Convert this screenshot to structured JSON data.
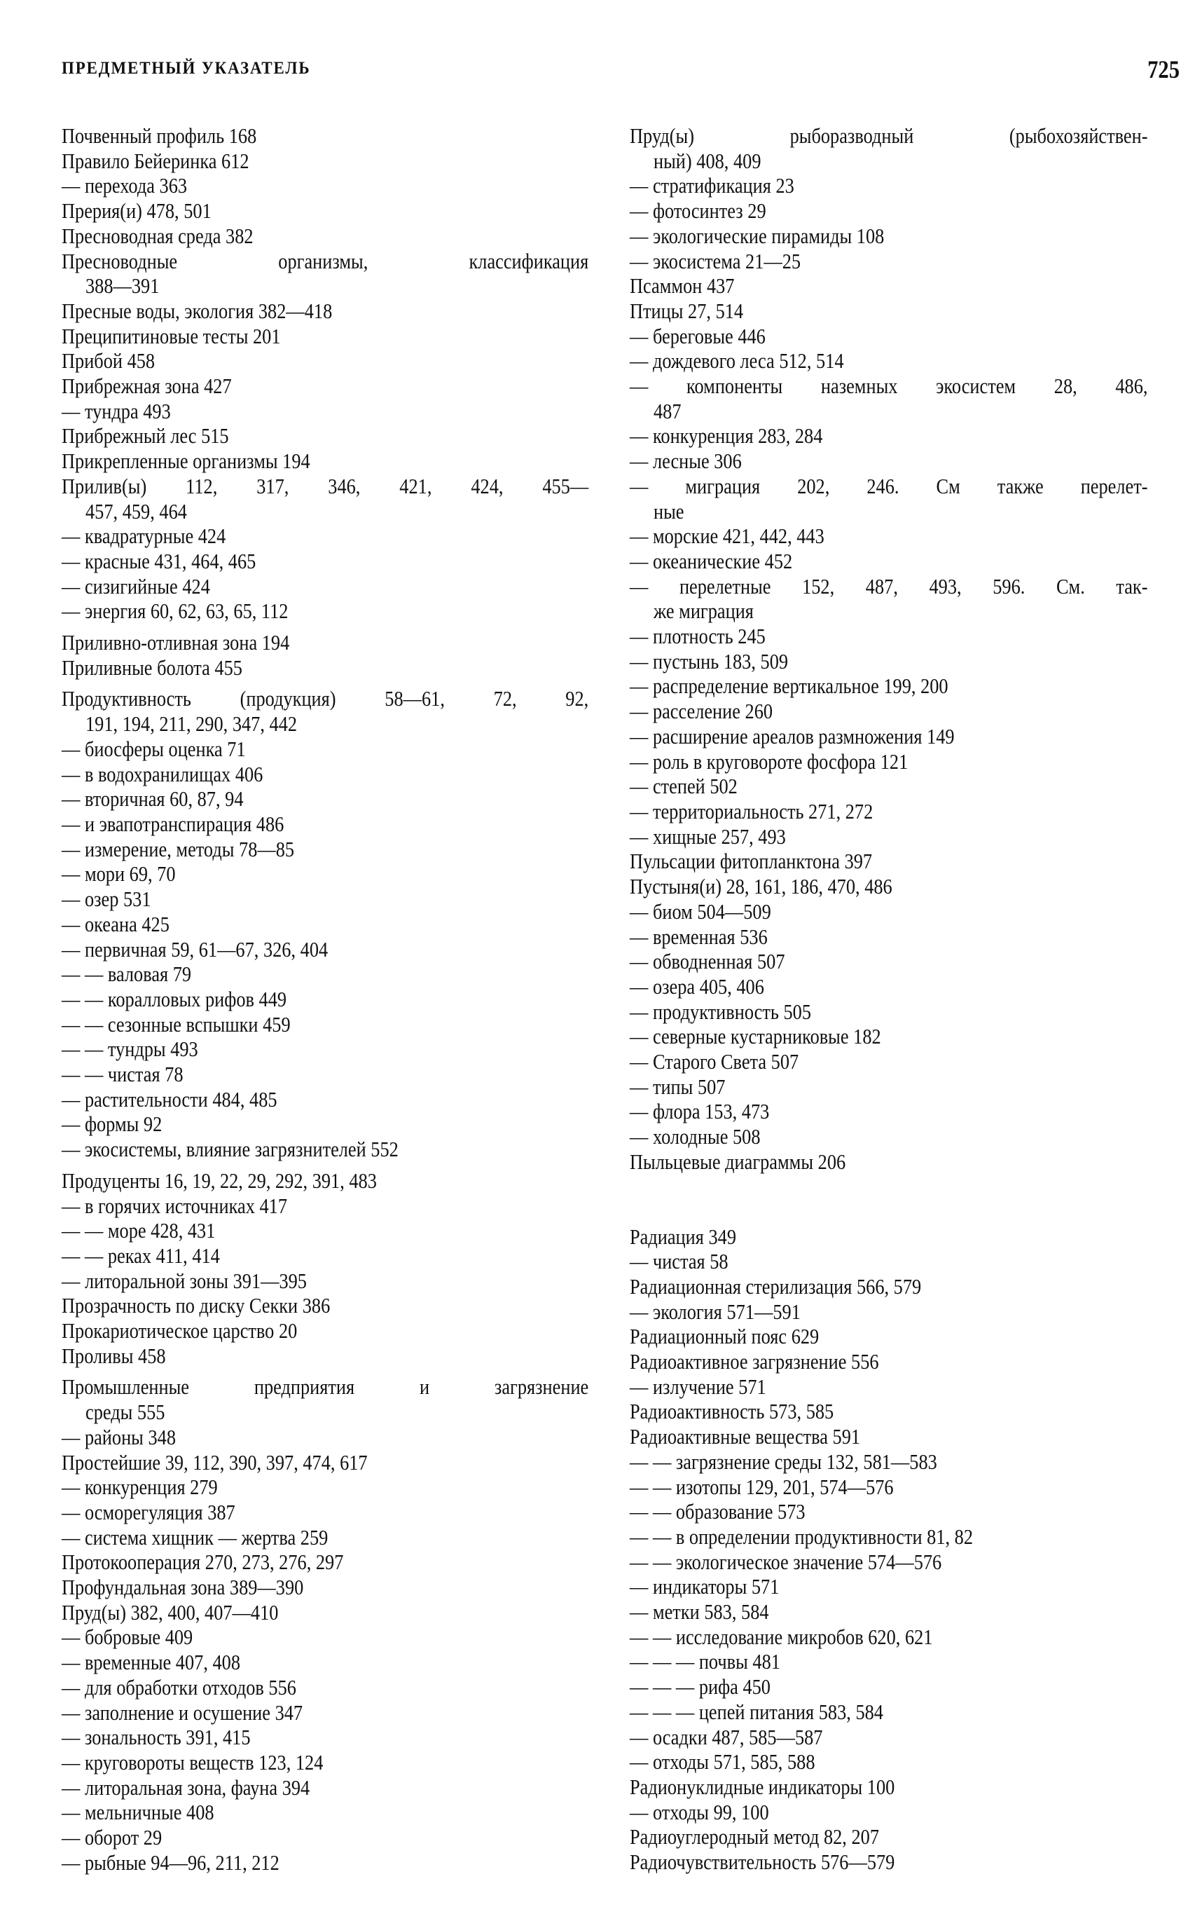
{
  "header": {
    "running_title": "ПРЕДМЕТНЫЙ УКАЗАТЕЛЬ",
    "page_number": "725"
  },
  "left": [
    [
      "Почвенный профиль 168"
    ],
    [
      "Правило Бейеринка 612"
    ],
    [
      "— перехода 363"
    ],
    [
      "Прерия(и) 478, 501"
    ],
    [
      "Пресноводная среда 382"
    ],
    [
      "Пресноводные организмы, классификация",
      "388—391"
    ],
    [
      "Пресные воды, экология 382—418"
    ],
    [
      "Преципитиновые тесты 201"
    ],
    [
      "Прибой 458"
    ],
    [
      "Прибрежная зона 427"
    ],
    [
      "— тундра 493"
    ],
    [
      "Прибрежный лес 515"
    ],
    [
      "Прикрепленные организмы 194"
    ],
    [
      "Прилив(ы) 112, 317, 346, 421, 424, 455—",
      "457, 459, 464"
    ],
    [
      "— квадратурные 424"
    ],
    [
      "— красные 431, 464, 465"
    ],
    [
      "— сизигийные 424"
    ],
    [
      "— энергия 60, 62, 63, 65, 112"
    ],
    [
      "Приливно-отливная зона 194"
    ],
    [
      "Приливные болота 455"
    ],
    [
      "Продуктивность (продукция) 58—61, 72, 92,",
      "191, 194, 211, 290, 347, 442"
    ],
    [
      "— биосферы оценка 71"
    ],
    [
      "— в водохранилищах 406"
    ],
    [
      "— вторичная 60, 87, 94"
    ],
    [
      "— и эвапотранспирация 486"
    ],
    [
      "— измерение, методы 78—85"
    ],
    [
      "— мори 69, 70"
    ],
    [
      "— озер 531"
    ],
    [
      "— океана 425"
    ],
    [
      "— первичная 59, 61—67, 326, 404"
    ],
    [
      "— — валовая 79"
    ],
    [
      "— — коралловых рифов 449"
    ],
    [
      "— — сезонные вспышки 459"
    ],
    [
      "— — тундры 493"
    ],
    [
      "— — чистая 78"
    ],
    [
      "— растительности 484, 485"
    ],
    [
      "— формы 92"
    ],
    [
      "— экосистемы, влияние загрязнителей 552"
    ],
    [
      "Продуценты 16, 19, 22, 29, 292, 391, 483"
    ],
    [
      "— в горячих источниках 417"
    ],
    [
      "— — море 428, 431"
    ],
    [
      "— — реках 411, 414"
    ],
    [
      "— литоральной зоны 391—395"
    ],
    [
      "Прозрачность по диску Секки 386"
    ],
    [
      "Прокариотическое царство 20"
    ],
    [
      "Проливы 458"
    ],
    [
      "Промышленные предприятия и загрязнение",
      "среды 555"
    ],
    [
      "— районы 348"
    ],
    [
      "Простейшие 39, 112, 390, 397, 474, 617"
    ],
    [
      "— конкуренция 279"
    ],
    [
      "— осморегуляция 387"
    ],
    [
      "— система хищник — жертва 259"
    ],
    [
      "Протокооперация 270, 273, 276, 297"
    ],
    [
      "Профундальная зона 389—390"
    ],
    [
      "Пруд(ы) 382, 400, 407—410"
    ],
    [
      "— бобровые 409"
    ],
    [
      "— временные 407, 408"
    ],
    [
      "— для обработки отходов 556"
    ],
    [
      "— заполнение и осушение 347"
    ],
    [
      "— зональность 391, 415"
    ],
    [
      "— круговороты веществ 123, 124"
    ],
    [
      "— литоральная зона, фауна 394"
    ],
    [
      "— мельничные 408"
    ],
    [
      "— оборот 29"
    ],
    [
      "— рыбные 94—96, 211, 212"
    ]
  ],
  "right": [
    [
      "Пруд(ы) рыборазводный (рыбохозяйствен-",
      "ный) 408, 409"
    ],
    [
      "— стратификация 23"
    ],
    [
      "— фотосинтез 29"
    ],
    [
      "— экологические пирамиды 108"
    ],
    [
      "— экосистема 21—25"
    ],
    [
      "Псаммон 437"
    ],
    [
      "Птицы 27, 514"
    ],
    [
      "— береговые 446"
    ],
    [
      "— дождевого леса 512, 514"
    ],
    [
      "— компоненты наземных экосистем 28, 486,",
      "487"
    ],
    [
      "— конкуренция 283, 284"
    ],
    [
      "— лесные 306"
    ],
    [
      "— миграция 202, 246. См также перелет-",
      "ные"
    ],
    [
      "— морские 421, 442, 443"
    ],
    [
      "— океанические 452"
    ],
    [
      "— перелетные 152, 487, 493, 596. См. так-",
      "же миграция"
    ],
    [
      "— плотность 245"
    ],
    [
      "— пустынь 183, 509"
    ],
    [
      "— распределение вертикальное 199, 200"
    ],
    [
      "— расселение 260"
    ],
    [
      "— расширение ареалов размножения 149"
    ],
    [
      "— роль в круговороте фосфора 121"
    ],
    [
      "— степей 502"
    ],
    [
      "— территориальность 271, 272"
    ],
    [
      "— хищные 257, 493"
    ],
    [
      "Пульсации фитопланктона 397"
    ],
    [
      "Пустыня(и) 28, 161, 186, 470, 486"
    ],
    [
      "— биом 504—509"
    ],
    [
      "— временная 536"
    ],
    [
      "— обводненная 507"
    ],
    [
      "— озера 405, 406"
    ],
    [
      "— продуктивность 505"
    ],
    [
      "— северные кустарниковые 182"
    ],
    [
      "— Старого Света 507"
    ],
    [
      "— типы 507"
    ],
    [
      "— флора 153, 473"
    ],
    [
      "— холодные 508"
    ],
    [
      "Пыльцевые диаграммы 206"
    ],
    [
      "Радиация 349"
    ],
    [
      "— чистая 58"
    ],
    [
      "Радиационная стерилизация 566, 579"
    ],
    [
      "— экология 571—591"
    ],
    [
      "Радиационный пояс 629"
    ],
    [
      "Радиоактивное загрязнение 556"
    ],
    [
      "— излучение 571"
    ],
    [
      "Радиоактивность 573, 585"
    ],
    [
      "Радиоактивные вещества 591"
    ],
    [
      "— — загрязнение среды 132, 581—583"
    ],
    [
      "— — изотопы 129, 201, 574—576"
    ],
    [
      "— — образование 573"
    ],
    [
      "— — в определении продуктивности 81, 82"
    ],
    [
      "— — экологическое значение 574—576"
    ],
    [
      "— индикаторы 571"
    ],
    [
      "— метки 583, 584"
    ],
    [
      "— — исследование микробов 620, 621"
    ],
    [
      "— — — почвы 481"
    ],
    [
      "— — — рифа 450"
    ],
    [
      "— — — цепей питания 583, 584"
    ],
    [
      "— осадки 487, 585—587"
    ],
    [
      "— отходы 571, 585, 588"
    ],
    [
      "Радионуклидные индикаторы 100"
    ],
    [
      "— отходы 99, 100"
    ],
    [
      "Радиоуглеродный метод 82, 207"
    ],
    [
      "Радиочувствительность 576—579"
    ]
  ]
}
